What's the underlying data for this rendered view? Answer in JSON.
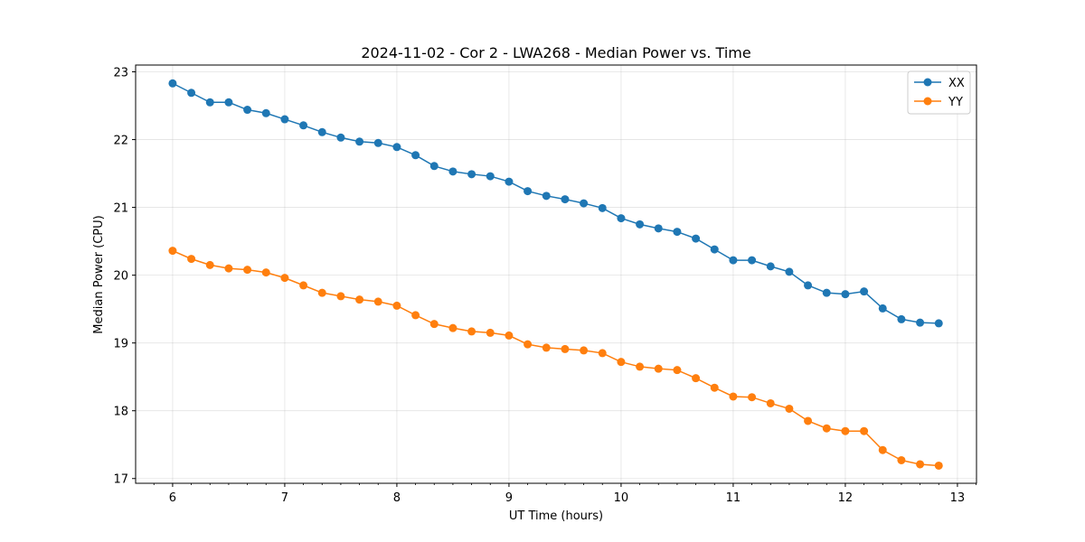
{
  "chart_data": {
    "type": "line",
    "title": "2024-11-02 - Cor 2 - LWA268 - Median Power vs. Time",
    "xlabel": "UT Time (hours)",
    "ylabel": "Median Power (CPU)",
    "xlim": [
      5.67,
      13.17
    ],
    "ylim": [
      16.93,
      23.1
    ],
    "grid": true,
    "legend_position": "top-right",
    "x_ticks": [
      6,
      7,
      8,
      9,
      10,
      11,
      12,
      13
    ],
    "x_tick_labels": [
      "6",
      "7",
      "8",
      "9",
      "10",
      "11",
      "12",
      "13"
    ],
    "y_ticks": [
      17,
      18,
      19,
      20,
      21,
      22,
      23
    ],
    "y_tick_labels": [
      "17",
      "18",
      "19",
      "20",
      "21",
      "22",
      "23"
    ],
    "x": [
      6.0,
      6.1667,
      6.3333,
      6.5,
      6.6667,
      6.8333,
      7.0,
      7.1667,
      7.3333,
      7.5,
      7.6667,
      7.8333,
      8.0,
      8.1667,
      8.3333,
      8.5,
      8.6667,
      8.8333,
      9.0,
      9.1667,
      9.3333,
      9.5,
      9.6667,
      9.8333,
      10.0,
      10.1667,
      10.3333,
      10.5,
      10.6667,
      10.8333,
      11.0,
      11.1667,
      11.3333,
      11.5,
      11.6667,
      11.8333,
      12.0,
      12.1667,
      12.3333,
      12.5,
      12.6667,
      12.8333
    ],
    "series": [
      {
        "name": "XX",
        "color": "#1f77b4",
        "values": [
          22.83,
          22.69,
          22.55,
          22.55,
          22.44,
          22.39,
          22.3,
          22.21,
          22.11,
          22.03,
          21.97,
          21.95,
          21.89,
          21.77,
          21.61,
          21.53,
          21.49,
          21.46,
          21.38,
          21.24,
          21.17,
          21.12,
          21.06,
          20.99,
          20.84,
          20.75,
          20.69,
          20.64,
          20.54,
          20.38,
          20.22,
          20.22,
          20.13,
          20.05,
          19.85,
          19.74,
          19.72,
          19.76,
          19.51,
          19.35,
          19.3,
          19.29
        ]
      },
      {
        "name": "YY",
        "color": "#ff7f0e",
        "values": [
          20.36,
          20.24,
          20.15,
          20.1,
          20.08,
          20.04,
          19.96,
          19.85,
          19.74,
          19.69,
          19.64,
          19.61,
          19.55,
          19.41,
          19.28,
          19.22,
          19.17,
          19.15,
          19.11,
          18.98,
          18.93,
          18.91,
          18.89,
          18.85,
          18.72,
          18.65,
          18.62,
          18.6,
          18.48,
          18.34,
          18.21,
          18.2,
          18.11,
          18.03,
          17.85,
          17.74,
          17.7,
          17.7,
          17.42,
          17.27,
          17.21,
          17.19
        ]
      }
    ]
  }
}
